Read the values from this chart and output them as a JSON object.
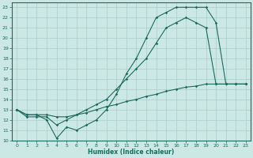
{
  "bg_color": "#cce8e4",
  "grid_color": "#aacccc",
  "line_color": "#1a6b5e",
  "xlabel": "Humidex (Indice chaleur)",
  "xlim": [
    -0.5,
    23.5
  ],
  "ylim": [
    10,
    23.5
  ],
  "xticks": [
    0,
    1,
    2,
    3,
    4,
    5,
    6,
    7,
    8,
    9,
    10,
    11,
    12,
    13,
    14,
    15,
    16,
    17,
    18,
    19,
    20,
    21,
    22,
    23
  ],
  "yticks": [
    10,
    11,
    12,
    13,
    14,
    15,
    16,
    17,
    18,
    19,
    20,
    21,
    22,
    23
  ],
  "line1_x": [
    0,
    1,
    2,
    3,
    4,
    5,
    6,
    7,
    8,
    9,
    10,
    11,
    12,
    13,
    14,
    15,
    16,
    17,
    18,
    19,
    20,
    21,
    22,
    23
  ],
  "line1_y": [
    13,
    12.5,
    12.5,
    12,
    10.2,
    11.3,
    11.0,
    11.5,
    12.0,
    13.0,
    14.5,
    16.5,
    18.0,
    20.0,
    22.0,
    22.5,
    23.0,
    23.0,
    23.0,
    23.0,
    21.5,
    15.5,
    15.5,
    15.5
  ],
  "line2_x": [
    0,
    1,
    2,
    3,
    4,
    5,
    6,
    7,
    8,
    9,
    10,
    11,
    12,
    13,
    14,
    15,
    16,
    17,
    18,
    19,
    20,
    21,
    22,
    23
  ],
  "line2_y": [
    13,
    12.3,
    12.3,
    12.3,
    11.5,
    12.0,
    12.5,
    13.0,
    13.5,
    14.0,
    15.0,
    16.0,
    17.0,
    18.0,
    19.5,
    21.0,
    21.5,
    22.0,
    21.5,
    21.0,
    15.5,
    15.5,
    15.5,
    15.5
  ],
  "line3_x": [
    0,
    1,
    2,
    3,
    4,
    5,
    6,
    7,
    8,
    9,
    10,
    11,
    12,
    13,
    14,
    15,
    16,
    17,
    18,
    19,
    20,
    21,
    22,
    23
  ],
  "line3_y": [
    13,
    12.5,
    12.5,
    12.5,
    12.3,
    12.3,
    12.5,
    12.7,
    13.0,
    13.3,
    13.5,
    13.8,
    14.0,
    14.3,
    14.5,
    14.8,
    15.0,
    15.2,
    15.3,
    15.5,
    15.5,
    15.5,
    15.5,
    15.5
  ]
}
